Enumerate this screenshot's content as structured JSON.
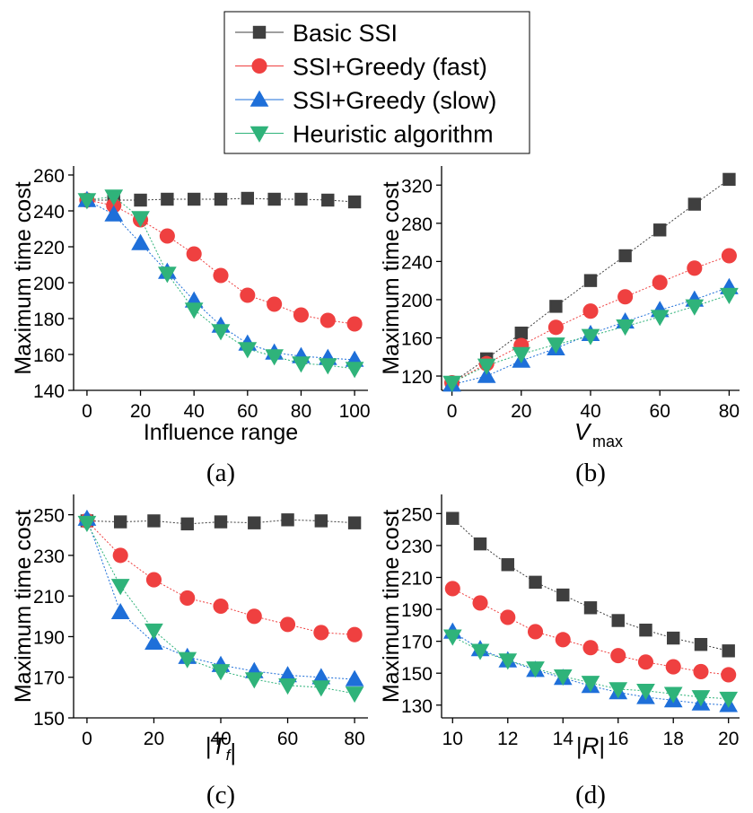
{
  "legend": {
    "entries": [
      {
        "name": "Basic SSI",
        "marker": "square",
        "color": "#3f3f3f"
      },
      {
        "name": "SSI+Greedy (fast)",
        "marker": "circle",
        "color": "#ef4040"
      },
      {
        "name": "SSI+Greedy (slow)",
        "marker": "triangle-up",
        "color": "#1e6fd9"
      },
      {
        "name": "Heuristic algorithm",
        "marker": "triangle-down",
        "color": "#2fb37a"
      }
    ]
  },
  "chart_data": [
    {
      "type": "line",
      "caption": "(a)",
      "xlabel": "Influence range",
      "ylabel": "Maximum time cost",
      "xlim": [
        -5,
        105
      ],
      "ylim": [
        140,
        265
      ],
      "xticks": [
        0,
        20,
        40,
        60,
        80,
        100
      ],
      "yticks": [
        140,
        160,
        180,
        200,
        220,
        240,
        260
      ],
      "x": [
        0,
        10,
        20,
        30,
        40,
        50,
        60,
        70,
        80,
        90,
        100
      ],
      "series": [
        {
          "name": "Basic SSI",
          "values": [
            246,
            246,
            246,
            246.5,
            246.5,
            246.5,
            247,
            246.5,
            246.5,
            246,
            245
          ]
        },
        {
          "name": "SSI+Greedy (fast)",
          "values": [
            246,
            243,
            235,
            226,
            216,
            204,
            193,
            188,
            182,
            179,
            177
          ]
        },
        {
          "name": "SSI+Greedy (slow)",
          "values": [
            246,
            238,
            222,
            206,
            190,
            176,
            166,
            161,
            159,
            158,
            157
          ]
        },
        {
          "name": "Heuristic algorithm",
          "values": [
            246,
            248,
            236,
            205,
            185,
            173,
            163,
            159,
            155,
            154,
            152
          ]
        }
      ]
    },
    {
      "type": "line",
      "caption": "(b)",
      "xlabel": "V",
      "xlabel_sub": "max",
      "ylabel": "Maximum time cost",
      "xlim": [
        -3,
        83
      ],
      "ylim": [
        105,
        340
      ],
      "xticks": [
        0,
        20,
        40,
        60,
        80
      ],
      "yticks": [
        120,
        160,
        200,
        240,
        280,
        320
      ],
      "x": [
        0,
        10,
        20,
        30,
        40,
        50,
        60,
        70,
        80
      ],
      "series": [
        {
          "name": "Basic SSI",
          "values": [
            113,
            138,
            165,
            193,
            220,
            246,
            273,
            300,
            326
          ]
        },
        {
          "name": "SSI+Greedy (fast)",
          "values": [
            113,
            133,
            152,
            171,
            188,
            203,
            218,
            233,
            246
          ]
        },
        {
          "name": "SSI+Greedy (slow)",
          "values": [
            111,
            120,
            136,
            149,
            164,
            177,
            189,
            200,
            213
          ]
        },
        {
          "name": "Heuristic algorithm",
          "values": [
            113,
            131,
            143,
            153,
            162,
            172,
            182,
            193,
            205
          ]
        }
      ]
    },
    {
      "type": "line",
      "caption": "(c)",
      "xlabel_parts": [
        "|",
        "T",
        "f",
        "|"
      ],
      "ylabel": "Maximum time cost",
      "xlim": [
        -4,
        84
      ],
      "ylim": [
        150,
        260
      ],
      "xticks": [
        0,
        20,
        40,
        60,
        80
      ],
      "yticks": [
        150,
        170,
        190,
        210,
        230,
        250
      ],
      "x": [
        0,
        10,
        20,
        30,
        40,
        50,
        60,
        70,
        80
      ],
      "series": [
        {
          "name": "Basic SSI",
          "values": [
            247,
            246.5,
            247,
            245.5,
            246.5,
            246,
            247.5,
            247,
            246
          ]
        },
        {
          "name": "SSI+Greedy (fast)",
          "values": [
            247,
            230,
            218,
            209,
            205,
            200,
            196,
            192,
            191
          ]
        },
        {
          "name": "SSI+Greedy (slow)",
          "values": [
            248,
            202,
            187,
            180,
            176,
            173,
            171,
            170,
            169
          ]
        },
        {
          "name": "Heuristic algorithm",
          "values": [
            246,
            215,
            193,
            179,
            173,
            169,
            166,
            165,
            162
          ]
        }
      ]
    },
    {
      "type": "line",
      "caption": "(d)",
      "xlabel_parts": [
        "|",
        "R",
        "|"
      ],
      "ylabel": "Maximum time cost",
      "xlim": [
        9.6,
        20.4
      ],
      "ylim": [
        122,
        262
      ],
      "xticks": [
        10,
        12,
        14,
        16,
        18,
        20
      ],
      "yticks": [
        130,
        150,
        170,
        190,
        210,
        230,
        250
      ],
      "x": [
        10,
        11,
        12,
        13,
        14,
        15,
        16,
        17,
        18,
        19,
        20
      ],
      "series": [
        {
          "name": "Basic SSI",
          "values": [
            247,
            231,
            218,
            207,
            199,
            191,
            183,
            177,
            172,
            168,
            164
          ]
        },
        {
          "name": "SSI+Greedy (fast)",
          "values": [
            203,
            194,
            185,
            176,
            171,
            166,
            161,
            157,
            154,
            151,
            149
          ]
        },
        {
          "name": "SSI+Greedy (slow)",
          "values": [
            176,
            165,
            158,
            152,
            147,
            142,
            138,
            135,
            133,
            131,
            130
          ]
        },
        {
          "name": "Heuristic algorithm",
          "values": [
            173,
            164,
            158,
            153,
            148,
            144,
            140,
            139,
            137,
            135,
            134
          ]
        }
      ]
    }
  ]
}
